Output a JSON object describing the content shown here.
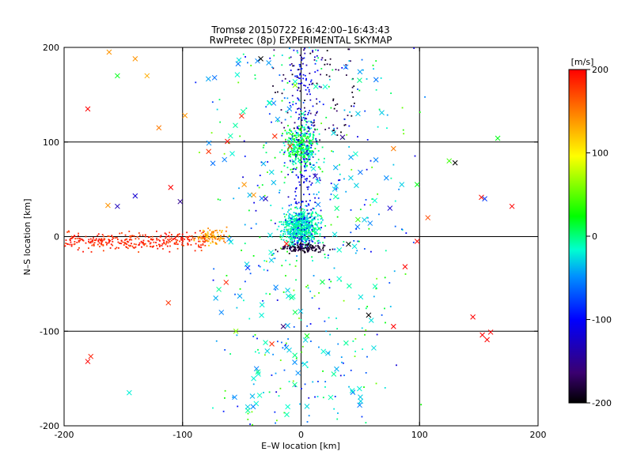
{
  "chart_data": {
    "type": "scatter",
    "title_line1": "Tromsø 20150722 16:42:00–16:43:43",
    "title_line2": "RwPretec (8p) EXPERIMENTAL SKYMAP",
    "xlabel": "E–W location [km]",
    "ylabel": "N–S location [km]",
    "xlim": [
      -200,
      200
    ],
    "ylim": [
      -200,
      200
    ],
    "xticks": [
      -200,
      -100,
      0,
      100,
      200
    ],
    "yticks": [
      -200,
      -100,
      0,
      100,
      200
    ],
    "grid": true,
    "colorbar": {
      "label": "[m/s]",
      "range": [
        -200,
        200
      ],
      "ticks": [
        200,
        100,
        0,
        -100,
        -200
      ],
      "colors": [
        "#000000",
        "#3a0070",
        "#0000ff",
        "#0090ff",
        "#00ffd0",
        "#00ff00",
        "#ffff00",
        "#ff8000",
        "#ff0000"
      ]
    },
    "marker_note": "dots = small points, crosses = x markers; color encodes velocity",
    "clusters": [
      {
        "name": "west-red-band",
        "marker": "dot",
        "n": 320,
        "x": [
          -200,
          -80
        ],
        "y": [
          -18,
          8
        ],
        "vel": [
          170,
          200
        ]
      },
      {
        "name": "west-orange-clump",
        "marker": "dot",
        "n": 90,
        "x": [
          -95,
          -55
        ],
        "y": [
          -12,
          12
        ],
        "vel": [
          110,
          160
        ]
      },
      {
        "name": "center-cyan",
        "marker": "dot",
        "n": 650,
        "x": [
          -22,
          22
        ],
        "y": [
          -15,
          35
        ],
        "vel": [
          -40,
          10
        ]
      },
      {
        "name": "center-green",
        "marker": "dot",
        "n": 350,
        "x": [
          -20,
          20
        ],
        "y": [
          60,
          130
        ],
        "vel": [
          -30,
          40
        ]
      },
      {
        "name": "center-blue",
        "marker": "dot",
        "n": 260,
        "x": [
          -20,
          25
        ],
        "y": [
          -15,
          200
        ],
        "vel": [
          -140,
          -80
        ]
      },
      {
        "name": "center-black",
        "marker": "dot",
        "n": 120,
        "x": [
          -25,
          30
        ],
        "y": [
          -20,
          -5
        ],
        "vel": [
          -200,
          -170
        ]
      },
      {
        "name": "north-black",
        "marker": "dot",
        "n": 90,
        "x": [
          -25,
          45
        ],
        "y": [
          100,
          200
        ],
        "vel": [
          -200,
          -160
        ]
      },
      {
        "name": "scatter-mixed",
        "marker": "dot",
        "n": 420,
        "x": [
          -100,
          110
        ],
        "y": [
          -200,
          200
        ],
        "vel": [
          -120,
          60
        ]
      },
      {
        "name": "crosses-cyan",
        "marker": "cross",
        "n": 110,
        "x": [
          -80,
          70
        ],
        "y": [
          -190,
          190
        ],
        "vel": [
          -60,
          0
        ]
      },
      {
        "name": "crosses-red",
        "marker": "cross",
        "n": 10,
        "x": [
          -185,
          180
        ],
        "y": [
          -135,
          135
        ],
        "vel": [
          180,
          200
        ]
      }
    ],
    "crosses_explicit": [
      {
        "x": -162,
        "y": 195,
        "v": 140
      },
      {
        "x": -140,
        "y": 188,
        "v": 140
      },
      {
        "x": -130,
        "y": 170,
        "v": 130
      },
      {
        "x": -155,
        "y": 170,
        "v": 20
      },
      {
        "x": -180,
        "y": 135,
        "v": 200
      },
      {
        "x": -98,
        "y": 128,
        "v": 140
      },
      {
        "x": -73,
        "y": 168,
        "v": -60
      },
      {
        "x": -110,
        "y": 52,
        "v": 200
      },
      {
        "x": -102,
        "y": 37,
        "v": -150
      },
      {
        "x": -155,
        "y": 32,
        "v": -130
      },
      {
        "x": -140,
        "y": 43,
        "v": -120
      },
      {
        "x": -163,
        "y": 33,
        "v": 140
      },
      {
        "x": -120,
        "y": 115,
        "v": 150
      },
      {
        "x": -180,
        "y": -132,
        "v": 200
      },
      {
        "x": 160,
        "y": -101,
        "v": 200
      },
      {
        "x": 157,
        "y": -109,
        "v": 200
      },
      {
        "x": 153,
        "y": -104,
        "v": 200
      },
      {
        "x": 145,
        "y": -85,
        "v": 200
      },
      {
        "x": 178,
        "y": 32,
        "v": 200
      },
      {
        "x": 107,
        "y": 20,
        "v": 170
      },
      {
        "x": 98,
        "y": -5,
        "v": 200
      },
      {
        "x": 78,
        "y": -95,
        "v": 200
      },
      {
        "x": 166,
        "y": 104,
        "v": 20
      },
      {
        "x": 130,
        "y": 78,
        "v": -200
      },
      {
        "x": 125,
        "y": 80,
        "v": 40
      },
      {
        "x": 155,
        "y": 40,
        "v": -80
      },
      {
        "x": 75,
        "y": 30,
        "v": -120
      },
      {
        "x": 40,
        "y": -8,
        "v": -200
      },
      {
        "x": 57,
        "y": -83,
        "v": -200
      },
      {
        "x": 35,
        "y": 105,
        "v": -150
      },
      {
        "x": 78,
        "y": 93,
        "v": 150
      },
      {
        "x": 12,
        "y": 64,
        "v": -130
      },
      {
        "x": -34,
        "y": 188,
        "v": -200
      },
      {
        "x": -5,
        "y": 160,
        "v": 60
      },
      {
        "x": -78,
        "y": 90,
        "v": 180
      },
      {
        "x": -48,
        "y": 55,
        "v": 140
      },
      {
        "x": -40,
        "y": 44,
        "v": 140
      },
      {
        "x": -30,
        "y": 40,
        "v": -130
      },
      {
        "x": -45,
        "y": -33,
        "v": -80
      },
      {
        "x": -55,
        "y": -100,
        "v": 60
      },
      {
        "x": -72,
        "y": -65,
        "v": -40
      },
      {
        "x": -112,
        "y": -70,
        "v": 180
      },
      {
        "x": 72,
        "y": 62,
        "v": -50
      },
      {
        "x": 85,
        "y": 55,
        "v": -30
      },
      {
        "x": 98,
        "y": 55,
        "v": 20
      },
      {
        "x": 42,
        "y": 62,
        "v": -30
      },
      {
        "x": 50,
        "y": 68,
        "v": -60
      },
      {
        "x": -25,
        "y": -25,
        "v": -30
      },
      {
        "x": -10,
        "y": -120,
        "v": -30
      },
      {
        "x": 5,
        "y": -105,
        "v": 20
      },
      {
        "x": 30,
        "y": -140,
        "v": -40
      },
      {
        "x": -40,
        "y": -150,
        "v": -20
      },
      {
        "x": -145,
        "y": -165,
        "v": -20
      },
      {
        "x": -45,
        "y": -180,
        "v": -30
      },
      {
        "x": -15,
        "y": -95,
        "v": -160
      },
      {
        "x": 18,
        "y": -48,
        "v": 10
      },
      {
        "x": -30,
        "y": -112,
        "v": -10
      },
      {
        "x": 25,
        "y": -170,
        "v": -10
      },
      {
        "x": -5,
        "y": -80,
        "v": 10
      },
      {
        "x": 48,
        "y": 18,
        "v": 40
      }
    ]
  }
}
